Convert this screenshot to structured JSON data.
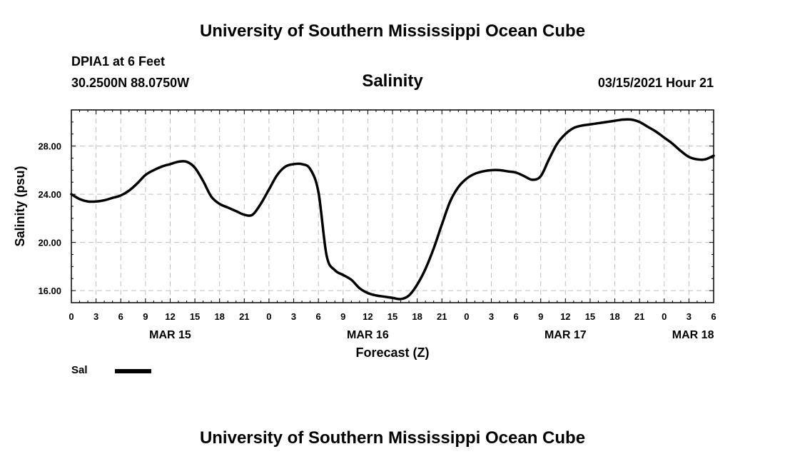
{
  "header": {
    "title": "University of Southern Mississippi Ocean Cube",
    "station": "DPIA1 at 6 Feet",
    "coords": "30.2500N 88.0750W",
    "chart_title": "Salinity",
    "valid_time": "03/15/2021 Hour 21"
  },
  "legend": {
    "label": "Sal",
    "color": "#000000"
  },
  "footer": {
    "title": "University of Southern Mississippi Ocean Cube"
  },
  "chart_data": {
    "type": "line",
    "title": "Salinity",
    "xlabel": "Forecast (Z)",
    "ylabel": "Salinity (psu)",
    "xlim": [
      0,
      78
    ],
    "ylim": [
      15,
      31
    ],
    "grid": true,
    "y_ticks": [
      16,
      20,
      24,
      28
    ],
    "y_tick_labels": [
      "16.00",
      "20.00",
      "24.00",
      "28.00"
    ],
    "x_ticks": [
      0,
      3,
      6,
      9,
      12,
      15,
      18,
      21,
      24,
      27,
      30,
      33,
      36,
      39,
      42,
      45,
      48,
      51,
      54,
      57,
      60,
      63,
      66,
      69,
      72,
      75,
      78
    ],
    "x_tick_labels": [
      "0",
      "3",
      "6",
      "9",
      "12",
      "15",
      "18",
      "21",
      "0",
      "3",
      "6",
      "9",
      "12",
      "15",
      "18",
      "21",
      "0",
      "3",
      "6",
      "9",
      "12",
      "15",
      "18",
      "21",
      "0",
      "3",
      "6"
    ],
    "date_labels": [
      {
        "x": 12,
        "label": "MAR 15"
      },
      {
        "x": 36,
        "label": "MAR 16"
      },
      {
        "x": 60,
        "label": "MAR 17"
      },
      {
        "x": 75.5,
        "label": "MAR 18"
      }
    ],
    "series": [
      {
        "name": "Sal",
        "color": "#000000",
        "x": [
          0,
          1,
          2,
          3,
          4,
          5,
          6,
          7,
          8,
          9,
          10,
          11,
          12,
          13,
          14,
          15,
          16,
          17,
          18,
          19,
          20,
          21,
          22,
          23,
          24,
          25,
          26,
          27,
          28,
          29,
          30,
          31,
          32,
          33,
          34,
          35,
          36,
          37,
          38,
          39,
          40,
          41,
          42,
          43,
          44,
          45,
          46,
          47,
          48,
          49,
          50,
          51,
          52,
          53,
          54,
          55,
          56,
          57,
          58,
          59,
          60,
          61,
          62,
          63,
          64,
          65,
          66,
          67,
          68,
          69,
          70,
          71,
          72,
          73,
          74,
          75,
          76,
          77,
          78
        ],
        "values": [
          24.0,
          23.6,
          23.4,
          23.4,
          23.5,
          23.7,
          23.9,
          24.3,
          24.9,
          25.6,
          26.0,
          26.3,
          26.5,
          26.7,
          26.7,
          26.2,
          25.1,
          23.8,
          23.2,
          22.9,
          22.6,
          22.3,
          22.3,
          23.2,
          24.4,
          25.6,
          26.3,
          26.5,
          26.5,
          26.1,
          24.2,
          18.9,
          17.7,
          17.3,
          16.9,
          16.2,
          15.8,
          15.6,
          15.5,
          15.4,
          15.3,
          15.6,
          16.5,
          17.8,
          19.5,
          21.5,
          23.4,
          24.6,
          25.3,
          25.7,
          25.9,
          26.0,
          26.0,
          25.9,
          25.8,
          25.5,
          25.2,
          25.5,
          26.9,
          28.2,
          29.0,
          29.5,
          29.7,
          29.8,
          29.9,
          30.0,
          30.1,
          30.2,
          30.2,
          30.0,
          29.6,
          29.2,
          28.7,
          28.2,
          27.6,
          27.1,
          26.9,
          26.9,
          27.2
        ]
      }
    ]
  }
}
